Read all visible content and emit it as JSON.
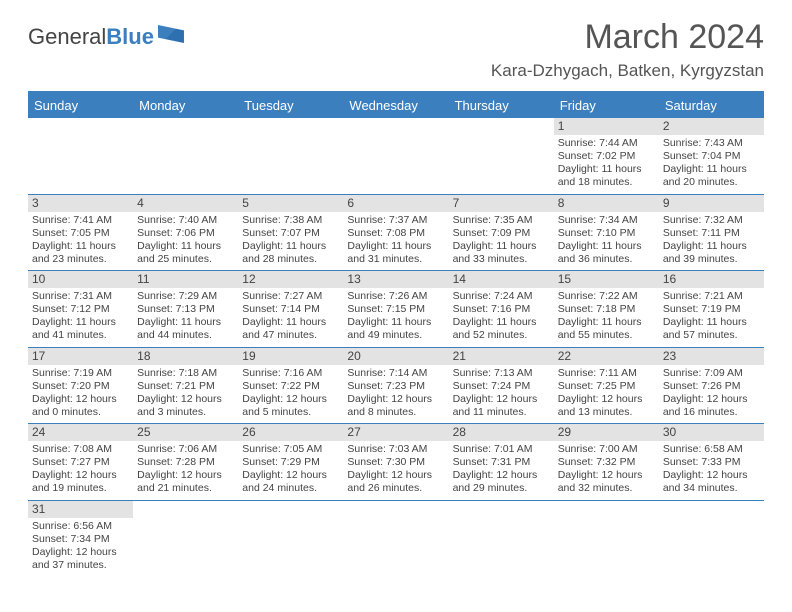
{
  "brand": {
    "part1": "General",
    "part2": "Blue"
  },
  "title": "March 2024",
  "location": "Kara-Dzhygach, Batken, Kyrgyzstan",
  "colors": {
    "accent": "#3b7fbf",
    "dayStripe": "#e3e3e3",
    "text": "#444"
  },
  "dayHeaders": [
    "Sunday",
    "Monday",
    "Tuesday",
    "Wednesday",
    "Thursday",
    "Friday",
    "Saturday"
  ],
  "weeks": [
    [
      null,
      null,
      null,
      null,
      null,
      {
        "n": "1",
        "sr": "Sunrise: 7:44 AM",
        "ss": "Sunset: 7:02 PM",
        "d1": "Daylight: 11 hours",
        "d2": "and 18 minutes."
      },
      {
        "n": "2",
        "sr": "Sunrise: 7:43 AM",
        "ss": "Sunset: 7:04 PM",
        "d1": "Daylight: 11 hours",
        "d2": "and 20 minutes."
      }
    ],
    [
      {
        "n": "3",
        "sr": "Sunrise: 7:41 AM",
        "ss": "Sunset: 7:05 PM",
        "d1": "Daylight: 11 hours",
        "d2": "and 23 minutes."
      },
      {
        "n": "4",
        "sr": "Sunrise: 7:40 AM",
        "ss": "Sunset: 7:06 PM",
        "d1": "Daylight: 11 hours",
        "d2": "and 25 minutes."
      },
      {
        "n": "5",
        "sr": "Sunrise: 7:38 AM",
        "ss": "Sunset: 7:07 PM",
        "d1": "Daylight: 11 hours",
        "d2": "and 28 minutes."
      },
      {
        "n": "6",
        "sr": "Sunrise: 7:37 AM",
        "ss": "Sunset: 7:08 PM",
        "d1": "Daylight: 11 hours",
        "d2": "and 31 minutes."
      },
      {
        "n": "7",
        "sr": "Sunrise: 7:35 AM",
        "ss": "Sunset: 7:09 PM",
        "d1": "Daylight: 11 hours",
        "d2": "and 33 minutes."
      },
      {
        "n": "8",
        "sr": "Sunrise: 7:34 AM",
        "ss": "Sunset: 7:10 PM",
        "d1": "Daylight: 11 hours",
        "d2": "and 36 minutes."
      },
      {
        "n": "9",
        "sr": "Sunrise: 7:32 AM",
        "ss": "Sunset: 7:11 PM",
        "d1": "Daylight: 11 hours",
        "d2": "and 39 minutes."
      }
    ],
    [
      {
        "n": "10",
        "sr": "Sunrise: 7:31 AM",
        "ss": "Sunset: 7:12 PM",
        "d1": "Daylight: 11 hours",
        "d2": "and 41 minutes."
      },
      {
        "n": "11",
        "sr": "Sunrise: 7:29 AM",
        "ss": "Sunset: 7:13 PM",
        "d1": "Daylight: 11 hours",
        "d2": "and 44 minutes."
      },
      {
        "n": "12",
        "sr": "Sunrise: 7:27 AM",
        "ss": "Sunset: 7:14 PM",
        "d1": "Daylight: 11 hours",
        "d2": "and 47 minutes."
      },
      {
        "n": "13",
        "sr": "Sunrise: 7:26 AM",
        "ss": "Sunset: 7:15 PM",
        "d1": "Daylight: 11 hours",
        "d2": "and 49 minutes."
      },
      {
        "n": "14",
        "sr": "Sunrise: 7:24 AM",
        "ss": "Sunset: 7:16 PM",
        "d1": "Daylight: 11 hours",
        "d2": "and 52 minutes."
      },
      {
        "n": "15",
        "sr": "Sunrise: 7:22 AM",
        "ss": "Sunset: 7:18 PM",
        "d1": "Daylight: 11 hours",
        "d2": "and 55 minutes."
      },
      {
        "n": "16",
        "sr": "Sunrise: 7:21 AM",
        "ss": "Sunset: 7:19 PM",
        "d1": "Daylight: 11 hours",
        "d2": "and 57 minutes."
      }
    ],
    [
      {
        "n": "17",
        "sr": "Sunrise: 7:19 AM",
        "ss": "Sunset: 7:20 PM",
        "d1": "Daylight: 12 hours",
        "d2": "and 0 minutes."
      },
      {
        "n": "18",
        "sr": "Sunrise: 7:18 AM",
        "ss": "Sunset: 7:21 PM",
        "d1": "Daylight: 12 hours",
        "d2": "and 3 minutes."
      },
      {
        "n": "19",
        "sr": "Sunrise: 7:16 AM",
        "ss": "Sunset: 7:22 PM",
        "d1": "Daylight: 12 hours",
        "d2": "and 5 minutes."
      },
      {
        "n": "20",
        "sr": "Sunrise: 7:14 AM",
        "ss": "Sunset: 7:23 PM",
        "d1": "Daylight: 12 hours",
        "d2": "and 8 minutes."
      },
      {
        "n": "21",
        "sr": "Sunrise: 7:13 AM",
        "ss": "Sunset: 7:24 PM",
        "d1": "Daylight: 12 hours",
        "d2": "and 11 minutes."
      },
      {
        "n": "22",
        "sr": "Sunrise: 7:11 AM",
        "ss": "Sunset: 7:25 PM",
        "d1": "Daylight: 12 hours",
        "d2": "and 13 minutes."
      },
      {
        "n": "23",
        "sr": "Sunrise: 7:09 AM",
        "ss": "Sunset: 7:26 PM",
        "d1": "Daylight: 12 hours",
        "d2": "and 16 minutes."
      }
    ],
    [
      {
        "n": "24",
        "sr": "Sunrise: 7:08 AM",
        "ss": "Sunset: 7:27 PM",
        "d1": "Daylight: 12 hours",
        "d2": "and 19 minutes."
      },
      {
        "n": "25",
        "sr": "Sunrise: 7:06 AM",
        "ss": "Sunset: 7:28 PM",
        "d1": "Daylight: 12 hours",
        "d2": "and 21 minutes."
      },
      {
        "n": "26",
        "sr": "Sunrise: 7:05 AM",
        "ss": "Sunset: 7:29 PM",
        "d1": "Daylight: 12 hours",
        "d2": "and 24 minutes."
      },
      {
        "n": "27",
        "sr": "Sunrise: 7:03 AM",
        "ss": "Sunset: 7:30 PM",
        "d1": "Daylight: 12 hours",
        "d2": "and 26 minutes."
      },
      {
        "n": "28",
        "sr": "Sunrise: 7:01 AM",
        "ss": "Sunset: 7:31 PM",
        "d1": "Daylight: 12 hours",
        "d2": "and 29 minutes."
      },
      {
        "n": "29",
        "sr": "Sunrise: 7:00 AM",
        "ss": "Sunset: 7:32 PM",
        "d1": "Daylight: 12 hours",
        "d2": "and 32 minutes."
      },
      {
        "n": "30",
        "sr": "Sunrise: 6:58 AM",
        "ss": "Sunset: 7:33 PM",
        "d1": "Daylight: 12 hours",
        "d2": "and 34 minutes."
      }
    ],
    [
      {
        "n": "31",
        "sr": "Sunrise: 6:56 AM",
        "ss": "Sunset: 7:34 PM",
        "d1": "Daylight: 12 hours",
        "d2": "and 37 minutes."
      },
      null,
      null,
      null,
      null,
      null,
      null
    ]
  ]
}
